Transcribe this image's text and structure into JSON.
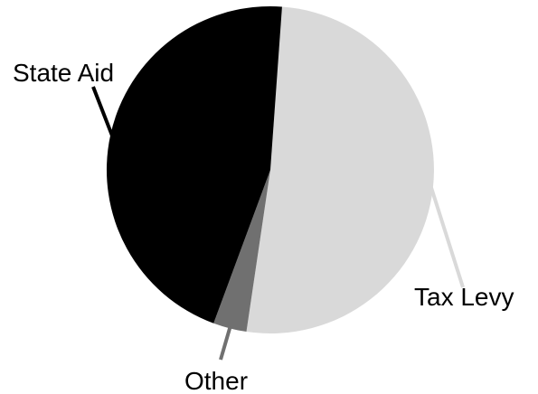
{
  "chart_data": {
    "type": "pie",
    "slices": [
      {
        "label": "Tax Levy",
        "value": 51.2,
        "color": "#d9d9d9"
      },
      {
        "label": "Other",
        "value": 3.3,
        "color": "#707070"
      },
      {
        "label": "State Aid",
        "value": 45.5,
        "color": "#000000"
      }
    ],
    "start_angle_deg": 4.1,
    "direction": "clockwise",
    "leader_lines": true,
    "legend": "none"
  }
}
